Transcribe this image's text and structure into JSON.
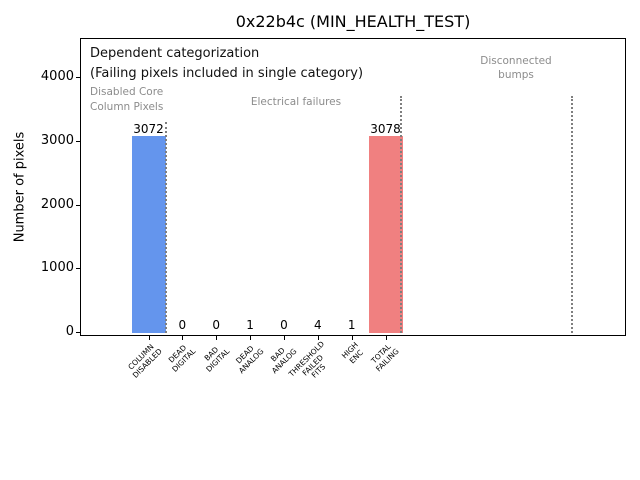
{
  "window": {
    "title": "0x22b4c (MIN_HEALTH_TEST)"
  },
  "chart_data": {
    "type": "bar",
    "title": "0x22b4c (MIN_HEALTH_TEST)",
    "xlabel": "",
    "ylabel": "Number of pixels",
    "categories": [
      "COLUMN\nDISABLED",
      "DEAD\nDIGITAL",
      "BAD\nDIGITAL",
      "DEAD\nANALOG",
      "BAD\nANALOG",
      "THRESHOLD\nFAILED\nFITS",
      "HIGH\nENC",
      "TOTAL\nFAILING"
    ],
    "values": [
      3072,
      0,
      0,
      1,
      0,
      4,
      1,
      3078
    ],
    "value_labels": [
      "3072",
      "0",
      "0",
      "1",
      "0",
      "4",
      "1",
      "3078"
    ],
    "bar_colors": [
      "#6495ED",
      "#6495ED",
      "#6495ED",
      "#6495ED",
      "#6495ED",
      "#6495ED",
      "#6495ED",
      "#F08080"
    ],
    "yticks": [
      0,
      1000,
      2000,
      3000,
      4000
    ],
    "ylim": [
      0,
      4650
    ],
    "grid": false,
    "legend": null,
    "annotations": [
      {
        "text": "Dependent categorization",
        "color": "#111111"
      },
      {
        "text": "(Failing pixels included in single category)",
        "color": "#111111"
      },
      {
        "text": "Disabled Core\nColumn Pixels",
        "color": "#8c8c8c"
      },
      {
        "text": "Electrical failures",
        "color": "#8c8c8c"
      },
      {
        "text": "Disconnected\nbumps",
        "color": "#8c8c8c"
      }
    ],
    "separators": [
      {
        "x": 0.55,
        "ytop": 3300
      },
      {
        "x": 7.5,
        "ytop": 3700
      },
      {
        "x": 12.55,
        "ytop": 3700
      }
    ],
    "colors": {
      "bar_blue": "#6495ED",
      "bar_red": "#F08080",
      "gray_text": "#8c8c8c",
      "separator_line": "#7f7f7f"
    }
  }
}
